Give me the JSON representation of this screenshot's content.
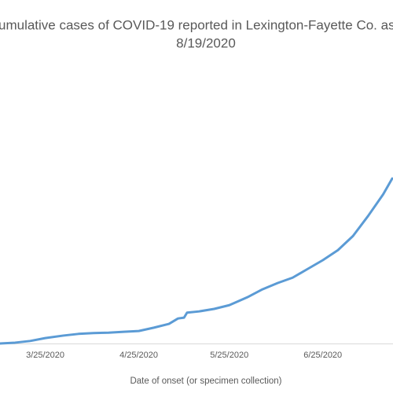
{
  "chart_data": {
    "type": "line",
    "title": [
      "umulative cases of COVID-19 reported in Lexington-Fayette Co.  as",
      "8/19/2020"
    ],
    "x_label": "Date of onset (or specimen collection)",
    "xlim": [
      "2020-03-10",
      "2020-07-18"
    ],
    "xticks": [
      {
        "value": "2020-03-25",
        "label": "3/25/2020"
      },
      {
        "value": "2020-04-25",
        "label": "4/25/2020"
      },
      {
        "value": "2020-05-25",
        "label": "5/25/2020"
      },
      {
        "value": "2020-06-25",
        "label": "6/25/2020"
      }
    ],
    "ylim": [
      0,
      4000
    ],
    "grid": false,
    "x": [
      "2020-03-10",
      "2020-03-15",
      "2020-03-20",
      "2020-03-25",
      "2020-03-31",
      "2020-04-05",
      "2020-04-10",
      "2020-04-15",
      "2020-04-20",
      "2020-04-25",
      "2020-04-30",
      "2020-05-05",
      "2020-05-08",
      "2020-05-10",
      "2020-05-11",
      "2020-05-15",
      "2020-05-20",
      "2020-05-25",
      "2020-05-31",
      "2020-06-05",
      "2020-06-10",
      "2020-06-15",
      "2020-06-20",
      "2020-06-25",
      "2020-06-30",
      "2020-07-05",
      "2020-07-10",
      "2020-07-15",
      "2020-07-18"
    ],
    "series": [
      {
        "name": "Cumulative cases",
        "color": "#5b9bd5",
        "values": [
          0,
          10,
          30,
          65,
          95,
          115,
          125,
          130,
          140,
          150,
          190,
          235,
          300,
          310,
          370,
          385,
          415,
          460,
          555,
          650,
          725,
          790,
          895,
          1000,
          1120,
          1290,
          1530,
          1790,
          1980
        ]
      }
    ]
  }
}
